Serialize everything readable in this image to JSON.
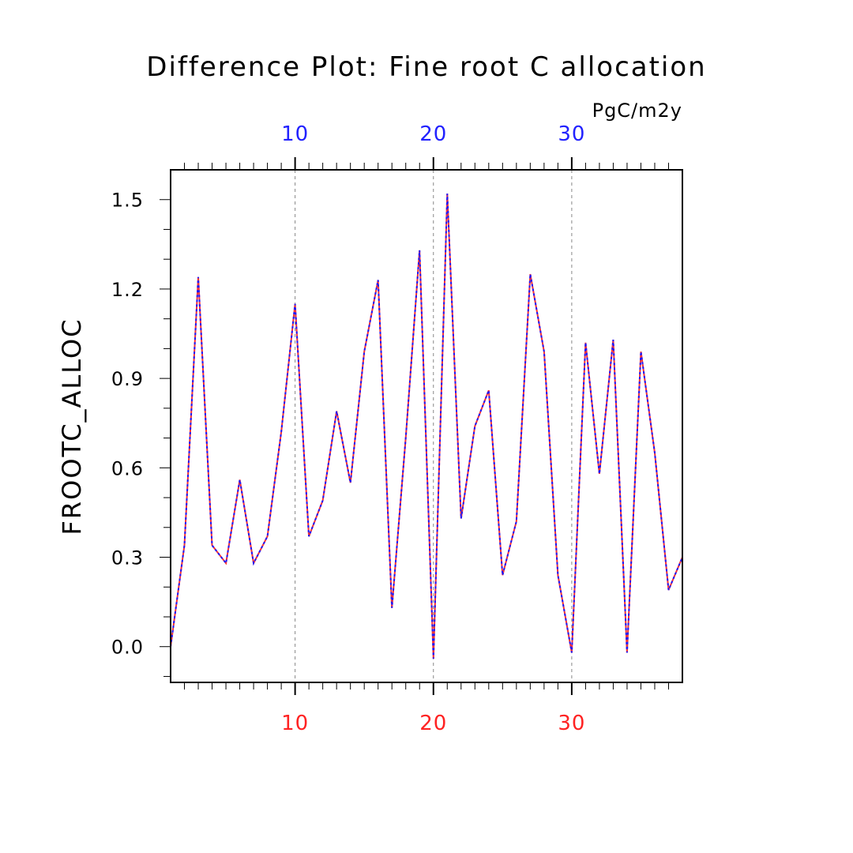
{
  "chart_data": {
    "type": "line",
    "title": "Difference Plot: Fine root C allocation",
    "units": "PgC/m2y",
    "ylabel": "FROOTC_ALLOC",
    "xlabel": "",
    "xlim": [
      1,
      38
    ],
    "ylim": [
      -0.12,
      1.6
    ],
    "yticks": [
      "0.0",
      "0.3",
      "0.6",
      "0.9",
      "1.2",
      "1.5"
    ],
    "ytick_values": [
      0.0,
      0.3,
      0.6,
      0.9,
      1.2,
      1.5
    ],
    "xticks_bottom": [
      "10",
      "20",
      "30"
    ],
    "xticks_top": [
      "10",
      "20",
      "30"
    ],
    "xtick_values": [
      10,
      20,
      30
    ],
    "grid_x": true,
    "series": [
      {
        "color": "#ff3333",
        "style": "solid",
        "x": [
          1,
          2,
          3,
          4,
          5,
          6,
          7,
          8,
          9,
          10,
          11,
          12,
          13,
          14,
          15,
          16,
          17,
          18,
          19,
          20,
          21,
          22,
          23,
          24,
          25,
          26,
          27,
          28,
          29,
          30,
          31,
          32,
          33,
          34,
          35,
          36,
          37,
          38
        ],
        "values": [
          0.0,
          0.34,
          1.24,
          0.34,
          0.28,
          0.56,
          0.28,
          0.37,
          0.72,
          1.15,
          0.37,
          0.49,
          0.79,
          0.55,
          0.99,
          1.23,
          0.13,
          0.7,
          1.33,
          -0.04,
          1.52,
          0.43,
          0.74,
          0.86,
          0.24,
          0.42,
          1.25,
          0.99,
          0.24,
          -0.02,
          1.02,
          0.58,
          1.03,
          -0.02,
          0.99,
          0.65,
          0.19,
          0.3
        ]
      },
      {
        "color": "#1a1aff",
        "style": "dashed",
        "x": [
          1,
          2,
          3,
          4,
          5,
          6,
          7,
          8,
          9,
          10,
          11,
          12,
          13,
          14,
          15,
          16,
          17,
          18,
          19,
          20,
          21,
          22,
          23,
          24,
          25,
          26,
          27,
          28,
          29,
          30,
          31,
          32,
          33,
          34,
          35,
          36,
          37,
          38
        ],
        "values": [
          0.0,
          0.34,
          1.24,
          0.34,
          0.28,
          0.56,
          0.28,
          0.37,
          0.72,
          1.15,
          0.37,
          0.49,
          0.79,
          0.55,
          0.99,
          1.23,
          0.13,
          0.7,
          1.33,
          -0.04,
          1.52,
          0.43,
          0.74,
          0.86,
          0.24,
          0.42,
          1.25,
          0.99,
          0.24,
          -0.02,
          1.02,
          0.58,
          1.03,
          -0.02,
          0.99,
          0.65,
          0.19,
          0.3
        ]
      }
    ],
    "bottom_axis_color": "#ff2222",
    "top_axis_color": "#2222ff"
  }
}
